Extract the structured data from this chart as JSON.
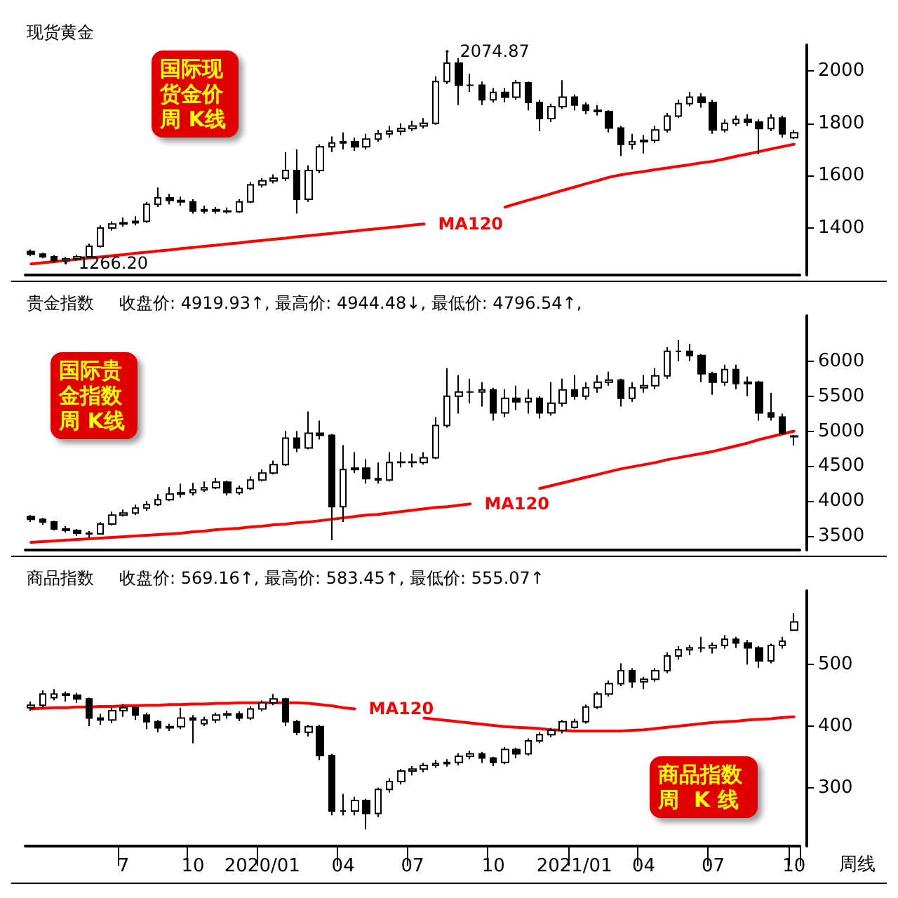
{
  "chart_data": [
    {
      "type": "candlestick",
      "title": "现货黄金",
      "color": "#000000",
      "tick_labels": "y",
      "categories": [
        null,
        null,
        null,
        null,
        null,
        null,
        null,
        null,
        "7",
        null,
        null,
        null,
        null,
        null,
        "10",
        null,
        null,
        null,
        null,
        null,
        "2020/01",
        null,
        null,
        null,
        null,
        null,
        null,
        "04",
        null,
        null,
        null,
        null,
        null,
        "07",
        null,
        null,
        null,
        null,
        null,
        null,
        "10",
        null,
        null,
        null,
        null,
        null,
        null,
        "2021/01",
        null,
        null,
        null,
        null,
        null,
        "04",
        null,
        null,
        null,
        null,
        null,
        "07",
        null,
        null,
        null,
        null,
        null,
        null,
        "10"
      ],
      "ohlc": [
        [
          1310,
          1318,
          1292,
          1300
        ],
        [
          1300,
          1305,
          1284,
          1290
        ],
        [
          1290,
          1296,
          1270,
          1275
        ],
        [
          1275,
          1290,
          1266.2,
          1282
        ],
        [
          1282,
          1298,
          1276,
          1290
        ],
        [
          1290,
          1340,
          1286,
          1330
        ],
        [
          1330,
          1410,
          1325,
          1400
        ],
        [
          1400,
          1425,
          1390,
          1415
        ],
        [
          1415,
          1440,
          1405,
          1420
        ],
        [
          1420,
          1445,
          1410,
          1425
        ],
        [
          1425,
          1500,
          1420,
          1490
        ],
        [
          1490,
          1555,
          1480,
          1515
        ],
        [
          1515,
          1530,
          1490,
          1505
        ],
        [
          1505,
          1520,
          1485,
          1500
        ],
        [
          1500,
          1510,
          1455,
          1465
        ],
        [
          1465,
          1485,
          1455,
          1470
        ],
        [
          1470,
          1480,
          1455,
          1465
        ],
        [
          1465,
          1478,
          1455,
          1462
        ],
        [
          1462,
          1510,
          1458,
          1500
        ],
        [
          1500,
          1575,
          1495,
          1565
        ],
        [
          1565,
          1590,
          1555,
          1580
        ],
        [
          1580,
          1605,
          1570,
          1590
        ],
        [
          1590,
          1690,
          1580,
          1620
        ],
        [
          1620,
          1700,
          1455,
          1510
        ],
        [
          1510,
          1640,
          1500,
          1620
        ],
        [
          1620,
          1720,
          1610,
          1710
        ],
        [
          1710,
          1750,
          1690,
          1725
        ],
        [
          1725,
          1765,
          1700,
          1730
        ],
        [
          1730,
          1745,
          1695,
          1710
        ],
        [
          1710,
          1760,
          1700,
          1740
        ],
        [
          1740,
          1775,
          1730,
          1760
        ],
        [
          1760,
          1790,
          1745,
          1770
        ],
        [
          1770,
          1800,
          1755,
          1780
        ],
        [
          1780,
          1810,
          1770,
          1790
        ],
        [
          1790,
          1820,
          1780,
          1800
        ],
        [
          1800,
          1980,
          1795,
          1960
        ],
        [
          1960,
          2074.87,
          1950,
          2030
        ],
        [
          2030,
          2050,
          1870,
          1946
        ],
        [
          1946,
          1990,
          1920,
          1946
        ],
        [
          1946,
          1960,
          1870,
          1890
        ],
        [
          1890,
          1935,
          1880,
          1918
        ],
        [
          1918,
          1935,
          1880,
          1900
        ],
        [
          1900,
          1965,
          1890,
          1955
        ],
        [
          1955,
          1960,
          1850,
          1880
        ],
        [
          1880,
          1890,
          1770,
          1818
        ],
        [
          1818,
          1875,
          1805,
          1864
        ],
        [
          1864,
          1965,
          1855,
          1900
        ],
        [
          1900,
          1910,
          1850,
          1870
        ],
        [
          1870,
          1880,
          1835,
          1850
        ],
        [
          1850,
          1870,
          1830,
          1845
        ],
        [
          1845,
          1850,
          1765,
          1782
        ],
        [
          1782,
          1790,
          1675,
          1720
        ],
        [
          1720,
          1760,
          1700,
          1730
        ],
        [
          1730,
          1755,
          1685,
          1735
        ],
        [
          1735,
          1790,
          1725,
          1775
        ],
        [
          1775,
          1840,
          1765,
          1828
        ],
        [
          1828,
          1890,
          1820,
          1875
        ],
        [
          1875,
          1920,
          1865,
          1900
        ],
        [
          1900,
          1915,
          1860,
          1880
        ],
        [
          1880,
          1890,
          1760,
          1775
        ],
        [
          1775,
          1815,
          1765,
          1800
        ],
        [
          1800,
          1830,
          1790,
          1815
        ],
        [
          1815,
          1835,
          1790,
          1805
        ],
        [
          1805,
          1815,
          1682,
          1780
        ],
        [
          1780,
          1835,
          1770,
          1820
        ],
        [
          1820,
          1830,
          1745,
          1760
        ],
        [
          1745,
          1775,
          1740,
          1764
        ]
      ],
      "series": [
        {
          "type": "line",
          "name": "MA120",
          "color": "#ff0000",
          "values": [
            1262,
            1267,
            1271,
            1276,
            1280,
            1285,
            1289,
            1294,
            1298,
            1303,
            1307,
            1312,
            1316,
            1321,
            1325,
            1330,
            1334,
            1339,
            1343,
            1348,
            1352,
            1357,
            1361,
            1366,
            1370,
            1375,
            1379,
            1384,
            1388,
            1393,
            1397,
            1402,
            1406,
            1411,
            1415,
            null,
            null,
            null,
            null,
            null,
            null,
            1480,
            1493,
            1506,
            1518,
            1531,
            1544,
            1556,
            1569,
            1581,
            1594,
            1603,
            1610,
            1616,
            1623,
            1629,
            1636,
            1642,
            1649,
            1655,
            1664,
            1674,
            1683,
            1692,
            1702,
            1711,
            1720
          ]
        }
      ],
      "ylim": [
        1220,
        2100
      ],
      "yticks": [
        1400,
        1600,
        1800,
        2000
      ],
      "annotations": [
        "国际现货金价周 K线",
        "2074.87",
        "1266.20"
      ]
    },
    {
      "type": "candlestick",
      "title": "贵金指数",
      "subtitle": "收盘价: 4919.93↑, 最高价: 4944.48↓, 最低价: 4796.54↑,",
      "color": "#000000",
      "tick_labels": "y",
      "categories": [
        null,
        null,
        null,
        null,
        null,
        null,
        null,
        null,
        "7",
        null,
        null,
        null,
        null,
        null,
        "10",
        null,
        null,
        null,
        null,
        null,
        "2020/01",
        null,
        null,
        null,
        null,
        null,
        null,
        "04",
        null,
        null,
        null,
        null,
        null,
        "07",
        null,
        null,
        null,
        null,
        null,
        null,
        "10",
        null,
        null,
        null,
        null,
        null,
        null,
        "2021/01",
        null,
        null,
        null,
        null,
        null,
        "04",
        null,
        null,
        null,
        null,
        null,
        "07",
        null,
        null,
        null,
        null,
        null,
        null,
        "10"
      ],
      "ohlc": [
        [
          3780,
          3800,
          3700,
          3740
        ],
        [
          3740,
          3760,
          3660,
          3700
        ],
        [
          3700,
          3720,
          3580,
          3600
        ],
        [
          3600,
          3640,
          3550,
          3580
        ],
        [
          3580,
          3600,
          3500,
          3540
        ],
        [
          3540,
          3570,
          3480,
          3530
        ],
        [
          3530,
          3700,
          3520,
          3670
        ],
        [
          3670,
          3850,
          3650,
          3800
        ],
        [
          3800,
          3880,
          3780,
          3830
        ],
        [
          3830,
          3950,
          3800,
          3900
        ],
        [
          3900,
          4000,
          3860,
          3950
        ],
        [
          3950,
          4100,
          3930,
          4020
        ],
        [
          4020,
          4200,
          4000,
          4100
        ],
        [
          4100,
          4250,
          4050,
          4120
        ],
        [
          4120,
          4260,
          4080,
          4160
        ],
        [
          4160,
          4280,
          4130,
          4190
        ],
        [
          4190,
          4330,
          4170,
          4270
        ],
        [
          4270,
          4290,
          4080,
          4120
        ],
        [
          4120,
          4220,
          4090,
          4180
        ],
        [
          4180,
          4350,
          4160,
          4300
        ],
        [
          4300,
          4450,
          4280,
          4400
        ],
        [
          4400,
          4580,
          4380,
          4520
        ],
        [
          4520,
          5000,
          4500,
          4900
        ],
        [
          4900,
          5000,
          4700,
          4760
        ],
        [
          4760,
          5280,
          4740,
          4970
        ],
        [
          4970,
          5150,
          4880,
          4940
        ],
        [
          4940,
          4960,
          3440,
          3920
        ],
        [
          3920,
          4800,
          3700,
          4450
        ],
        [
          4450,
          4700,
          4400,
          4470
        ],
        [
          4470,
          4600,
          4250,
          4320
        ],
        [
          4320,
          4550,
          4250,
          4300
        ],
        [
          4300,
          4700,
          4280,
          4550
        ],
        [
          4550,
          4700,
          4480,
          4560
        ],
        [
          4560,
          4680,
          4480,
          4550
        ],
        [
          4550,
          4700,
          4520,
          4620
        ],
        [
          4620,
          5200,
          4600,
          5080
        ],
        [
          5080,
          5900,
          5050,
          5500
        ],
        [
          5500,
          5800,
          5250,
          5560
        ],
        [
          5560,
          5750,
          5400,
          5560
        ],
        [
          5560,
          5700,
          5350,
          5590
        ],
        [
          5590,
          5620,
          5150,
          5260
        ],
        [
          5260,
          5600,
          5200,
          5470
        ],
        [
          5470,
          5650,
          5300,
          5420
        ],
        [
          5420,
          5600,
          5250,
          5470
        ],
        [
          5470,
          5500,
          5180,
          5260
        ],
        [
          5260,
          5700,
          5220,
          5400
        ],
        [
          5400,
          5750,
          5350,
          5590
        ],
        [
          5590,
          5800,
          5450,
          5500
        ],
        [
          5500,
          5700,
          5450,
          5620
        ],
        [
          5620,
          5800,
          5550,
          5700
        ],
        [
          5700,
          5850,
          5650,
          5730
        ],
        [
          5730,
          5750,
          5350,
          5470
        ],
        [
          5470,
          5700,
          5420,
          5620
        ],
        [
          5620,
          5800,
          5550,
          5650
        ],
        [
          5650,
          5900,
          5600,
          5790
        ],
        [
          5790,
          6200,
          5750,
          6140
        ],
        [
          6140,
          6300,
          6000,
          6140
        ],
        [
          6140,
          6250,
          6000,
          6080
        ],
        [
          6080,
          6100,
          5700,
          5820
        ],
        [
          5820,
          5850,
          5520,
          5700
        ],
        [
          5700,
          5950,
          5650,
          5880
        ],
        [
          5880,
          5950,
          5600,
          5680
        ],
        [
          5680,
          5780,
          5500,
          5700
        ],
        [
          5700,
          5720,
          5150,
          5260
        ],
        [
          5260,
          5550,
          5150,
          5200
        ],
        [
          5200,
          5250,
          4950,
          4970
        ],
        [
          4930,
          4944.48,
          4796.54,
          4919.93
        ]
      ],
      "series": [
        {
          "type": "line",
          "name": "MA120",
          "color": "#ff0000",
          "values": [
            3410,
            3420,
            3430,
            3440,
            3450,
            3460,
            3470,
            3480,
            3490,
            3500,
            3510,
            3520,
            3530,
            3540,
            3560,
            3570,
            3590,
            3600,
            3610,
            3630,
            3640,
            3660,
            3670,
            3690,
            3700,
            3720,
            3740,
            3760,
            3780,
            3800,
            3810,
            3830,
            3850,
            3870,
            3890,
            3910,
            3920,
            3940,
            3960,
            null,
            null,
            null,
            null,
            null,
            4180,
            4220,
            4260,
            4300,
            4340,
            4380,
            4420,
            4460,
            4490,
            4520,
            4550,
            4590,
            4620,
            4650,
            4680,
            4710,
            4750,
            4790,
            4830,
            4880,
            4920,
            4960,
            5000
          ]
        }
      ],
      "ylim": [
        3300,
        6650
      ],
      "yticks": [
        3500,
        4000,
        4500,
        5000,
        5500,
        6000
      ],
      "annotations": [
        "国际贵金指数周 K线"
      ]
    },
    {
      "type": "candlestick",
      "title": "商品指数",
      "subtitle": "收盘价: 569.16↑, 最高价: 583.45↑, 最低价: 555.07↑",
      "color": "#000000",
      "categories": [
        null,
        null,
        null,
        null,
        null,
        null,
        null,
        null,
        "7",
        null,
        null,
        null,
        null,
        null,
        "10",
        null,
        null,
        null,
        null,
        null,
        "2020/01",
        null,
        null,
        null,
        null,
        null,
        null,
        "04",
        null,
        null,
        null,
        null,
        null,
        "07",
        null,
        null,
        null,
        null,
        null,
        null,
        "10",
        null,
        null,
        null,
        null,
        null,
        null,
        "2021/01",
        null,
        null,
        null,
        null,
        null,
        "04",
        null,
        null,
        null,
        null,
        null,
        "07",
        null,
        null,
        null,
        null,
        null,
        null,
        "10"
      ],
      "ohlc": [
        [
          430,
          440,
          425,
          434
        ],
        [
          434,
          458,
          430,
          452
        ],
        [
          446,
          460,
          442,
          452
        ],
        [
          452,
          456,
          440,
          450
        ],
        [
          450,
          454,
          438,
          444
        ],
        [
          444,
          446,
          400,
          413
        ],
        [
          413,
          420,
          402,
          410
        ],
        [
          410,
          430,
          405,
          425
        ],
        [
          425,
          436,
          415,
          430
        ],
        [
          430,
          432,
          410,
          418
        ],
        [
          418,
          422,
          395,
          407
        ],
        [
          407,
          410,
          390,
          397
        ],
        [
          397,
          404,
          392,
          399
        ],
        [
          399,
          430,
          395,
          413
        ],
        [
          413,
          418,
          372,
          410
        ],
        [
          404,
          415,
          400,
          410
        ],
        [
          410,
          422,
          405,
          418
        ],
        [
          418,
          425,
          412,
          420
        ],
        [
          420,
          424,
          408,
          413
        ],
        [
          413,
          432,
          410,
          428
        ],
        [
          428,
          442,
          424,
          438
        ],
        [
          438,
          452,
          434,
          444
        ],
        [
          444,
          446,
          400,
          407
        ],
        [
          407,
          410,
          385,
          390
        ],
        [
          390,
          402,
          383,
          399
        ],
        [
          399,
          402,
          345,
          352
        ],
        [
          352,
          355,
          255,
          262
        ],
        [
          262,
          290,
          255,
          262
        ],
        [
          262,
          285,
          255,
          279
        ],
        [
          279,
          282,
          232,
          258
        ],
        [
          258,
          300,
          252,
          297
        ],
        [
          297,
          315,
          292,
          310
        ],
        [
          310,
          330,
          305,
          327
        ],
        [
          327,
          335,
          320,
          330
        ],
        [
          330,
          340,
          325,
          336
        ],
        [
          336,
          345,
          332,
          339
        ],
        [
          339,
          346,
          334,
          341
        ],
        [
          341,
          356,
          336,
          351
        ],
        [
          351,
          360,
          346,
          355
        ],
        [
          355,
          358,
          340,
          348
        ],
        [
          348,
          350,
          335,
          341
        ],
        [
          341,
          366,
          338,
          362
        ],
        [
          362,
          365,
          348,
          355
        ],
        [
          355,
          380,
          352,
          376
        ],
        [
          376,
          390,
          372,
          386
        ],
        [
          386,
          397,
          382,
          393
        ],
        [
          393,
          410,
          388,
          407
        ],
        [
          398,
          412,
          396,
          407
        ],
        [
          407,
          435,
          404,
          431
        ],
        [
          431,
          456,
          428,
          452
        ],
        [
          452,
          474,
          448,
          469
        ],
        [
          469,
          502,
          465,
          490
        ],
        [
          490,
          494,
          462,
          472
        ],
        [
          472,
          480,
          460,
          476
        ],
        [
          476,
          494,
          472,
          490
        ],
        [
          490,
          520,
          486,
          514
        ],
        [
          514,
          530,
          508,
          524
        ],
        [
          524,
          532,
          515,
          527
        ],
        [
          527,
          545,
          520,
          527
        ],
        [
          527,
          536,
          518,
          531
        ],
        [
          531,
          548,
          526,
          541
        ],
        [
          541,
          545,
          527,
          535
        ],
        [
          535,
          540,
          500,
          527
        ],
        [
          527,
          530,
          495,
          506
        ],
        [
          506,
          534,
          502,
          531
        ],
        [
          531,
          545,
          526,
          538
        ],
        [
          556,
          583.45,
          555.07,
          569.16
        ]
      ],
      "series": [
        {
          "type": "line",
          "name": "MA120",
          "color": "#ff0000",
          "values": [
            428,
            429,
            430,
            430,
            431,
            431,
            432,
            432,
            433,
            433,
            434,
            434,
            435,
            435,
            436,
            436,
            437,
            437,
            438,
            438,
            438,
            438,
            438,
            438,
            437,
            435,
            433,
            430,
            428,
            null,
            null,
            null,
            null,
            null,
            413,
            411,
            409,
            407,
            405,
            403,
            401,
            399,
            398,
            397,
            396,
            394,
            393,
            392,
            392,
            392,
            392,
            392,
            393,
            394,
            396,
            398,
            400,
            402,
            404,
            406,
            407,
            408,
            410,
            411,
            412,
            414,
            415
          ]
        }
      ],
      "ylim": [
        205,
        620
      ],
      "yticks": [
        300,
        400,
        500
      ],
      "annotations": [
        "商品指数周  K 线",
        "周线"
      ]
    }
  ]
}
